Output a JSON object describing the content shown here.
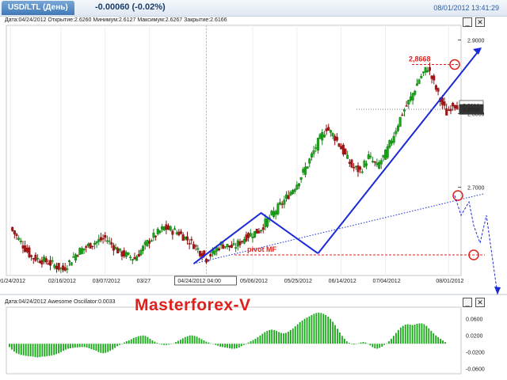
{
  "header": {
    "symbol_tab": "USD/LTL (День)",
    "change": "-0.00060 (-0.02%)",
    "timestamp": "08/01/2012 13:41:29"
  },
  "main_panel": {
    "ohlc_line": "Дата:04/24/2012 Открытие:2.6260 Минимум:2.6127 Максимум:2.6267 Закрытие:2.6166"
  },
  "oscillator_panel": {
    "title_line": "Дата:04/24/2012 Awesome Oscillator:0.0033"
  },
  "brand_label": "Masterforex-V",
  "window_buttons": [
    "_",
    "✕"
  ],
  "chart_data": [
    {
      "type": "candlestick",
      "title": "USD/LTL (День)",
      "x_tick_labels": [
        "01/24/2012",
        "02/16/2012",
        "03/07/2012",
        "03/27",
        "04/24/2012 04:00",
        "05/06/2012",
        "05/25/2012",
        "06/14/2012",
        "07/04/2012",
        "08/01/2012"
      ],
      "y_tick_labels": [
        "2.9000",
        "2.8000",
        "2.7000"
      ],
      "ylim": [
        2.58,
        2.92
      ],
      "last_price": "2.8114",
      "level_price": "2.8058",
      "close_path": [
        [
          0,
          2.645
        ],
        [
          10,
          2.605
        ],
        [
          18,
          2.598
        ],
        [
          25,
          2.588
        ],
        [
          32,
          2.612
        ],
        [
          38,
          2.622
        ],
        [
          45,
          2.631
        ],
        [
          52,
          2.611
        ],
        [
          59,
          2.603
        ],
        [
          66,
          2.628
        ],
        [
          73,
          2.645
        ],
        [
          80,
          2.638
        ],
        [
          87,
          2.622
        ],
        [
          93,
          2.603
        ],
        [
          100,
          2.622
        ],
        [
          106,
          2.618
        ],
        [
          112,
          2.633
        ],
        [
          118,
          2.641
        ],
        [
          124,
          2.662
        ],
        [
          130,
          2.682
        ],
        [
          136,
          2.705
        ],
        [
          141,
          2.731
        ],
        [
          146,
          2.761
        ],
        [
          150,
          2.781
        ],
        [
          154,
          2.768
        ],
        [
          158,
          2.748
        ],
        [
          162,
          2.728
        ],
        [
          166,
          2.722
        ],
        [
          170,
          2.741
        ],
        [
          174,
          2.728
        ],
        [
          178,
          2.745
        ],
        [
          182,
          2.772
        ],
        [
          186,
          2.801
        ],
        [
          190,
          2.821
        ],
        [
          194,
          2.847
        ],
        [
          198,
          2.863
        ],
        [
          201,
          2.841
        ],
        [
          204,
          2.818
        ],
        [
          207,
          2.801
        ],
        [
          210,
          2.814
        ],
        [
          212,
          2.8114
        ]
      ],
      "annotations": {
        "price_label": "2,8668",
        "pivot_label": "pivot MF",
        "price_label_value": 2.8668,
        "pivot_value": 2.608
      }
    },
    {
      "type": "bar",
      "title": "Awesome Oscillator",
      "y_tick_labels": [
        "0.0600",
        "0.0200",
        "-0.0200",
        "-0.0600"
      ],
      "ylim": [
        -0.072,
        0.088
      ],
      "values": [
        -0.008,
        -0.014,
        -0.019,
        -0.023,
        -0.025,
        -0.027,
        -0.028,
        -0.029,
        -0.03,
        -0.03,
        -0.031,
        -0.032,
        -0.033,
        -0.032,
        -0.031,
        -0.031,
        -0.03,
        -0.029,
        -0.028,
        -0.027,
        -0.025,
        -0.023,
        -0.02,
        -0.017,
        -0.014,
        -0.012,
        -0.011,
        -0.01,
        -0.009,
        -0.009,
        -0.008,
        -0.008,
        -0.008,
        -0.009,
        -0.011,
        -0.013,
        -0.015,
        -0.017,
        -0.02,
        -0.022,
        -0.023,
        -0.022,
        -0.02,
        -0.017,
        -0.014,
        -0.01,
        -0.006,
        -0.003,
        0.0,
        0.003,
        0.006,
        0.008,
        0.011,
        0.014,
        0.016,
        0.018,
        0.019,
        0.02,
        0.019,
        0.016,
        0.012,
        0.008,
        0.005,
        0.002,
        -0.001,
        -0.002,
        -0.003,
        -0.003,
        -0.002,
        -0.001,
        0.001,
        0.004,
        0.007,
        0.01,
        0.013,
        0.016,
        0.018,
        0.02,
        0.02,
        0.019,
        0.017,
        0.014,
        0.011,
        0.008,
        0.005,
        0.003,
        0.001,
        -0.001,
        -0.003,
        -0.005,
        -0.007,
        -0.008,
        -0.009,
        -0.01,
        -0.011,
        -0.012,
        -0.012,
        -0.011,
        -0.009,
        -0.006,
        -0.003,
        0.0,
        0.003,
        0.006,
        0.009,
        0.012,
        0.016,
        0.02,
        0.024,
        0.028,
        0.031,
        0.033,
        0.034,
        0.033,
        0.031,
        0.028,
        0.026,
        0.025,
        0.026,
        0.029,
        0.033,
        0.037,
        0.042,
        0.047,
        0.052,
        0.056,
        0.06,
        0.063,
        0.066,
        0.069,
        0.072,
        0.074,
        0.075,
        0.074,
        0.072,
        0.069,
        0.065,
        0.06,
        0.053,
        0.045,
        0.036,
        0.027,
        0.019,
        0.012,
        0.006,
        0.002,
        -0.001,
        -0.002,
        -0.001,
        0.001,
        0.003,
        0.004,
        0.003,
        0.0,
        -0.004,
        -0.008,
        -0.011,
        -0.012,
        -0.01,
        -0.007,
        -0.003,
        0.001,
        0.006,
        0.012,
        0.019,
        0.026,
        0.033,
        0.039,
        0.043,
        0.046,
        0.047,
        0.046,
        0.045,
        0.046,
        0.048,
        0.049,
        0.049,
        0.047,
        0.043,
        0.037,
        0.031,
        0.025,
        0.02,
        0.016,
        0.012,
        0.008,
        0.004
      ]
    }
  ]
}
